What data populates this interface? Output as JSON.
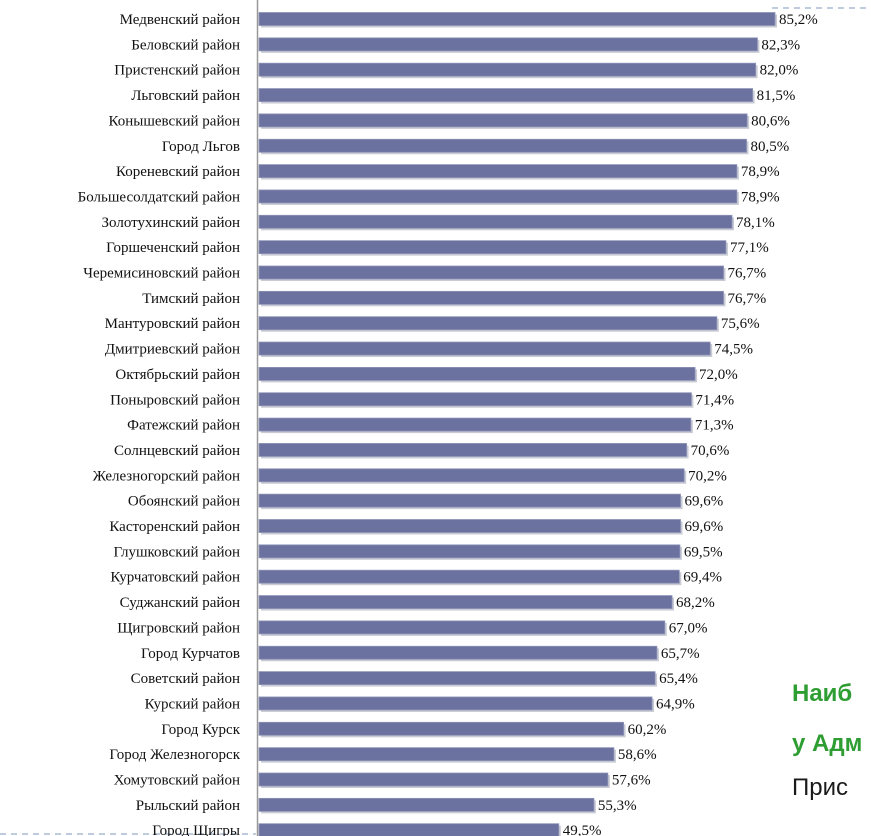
{
  "chart_data": {
    "type": "bar",
    "orientation": "horizontal",
    "categories": [
      "Медвенский район",
      "Беловский  район",
      "Пристенский район",
      "Льговский район",
      "Конышевский район",
      "Город Льгов",
      "Кореневский район",
      "Большесолдатский район",
      "Золотухинский район",
      "Горшеченский район",
      "Черемисиновский район",
      "Тимский район",
      "Мантуровский район",
      "Дмитриевский район",
      "Октябрьский район",
      "Поныровский район",
      "Фатежский район",
      "Солнцевский район",
      "Железногорский район",
      "Обоянский район",
      "Касторенский район",
      "Глушковский район",
      "Курчатовский район",
      "Суджанский район",
      "Щигровский район",
      "Город Курчатов",
      "Советский район",
      "Курский район",
      "Город Курск",
      "Город Железногорск",
      "Хомутовский район",
      "Рыльский район",
      "Город Щигры"
    ],
    "values": [
      85.2,
      82.3,
      82.0,
      81.5,
      80.6,
      80.5,
      78.9,
      78.9,
      78.1,
      77.1,
      76.7,
      76.7,
      75.6,
      74.5,
      72.0,
      71.4,
      71.3,
      70.6,
      70.2,
      69.6,
      69.6,
      69.5,
      69.4,
      68.2,
      67.0,
      65.7,
      65.4,
      64.9,
      60.2,
      58.6,
      57.6,
      55.3,
      49.5
    ],
    "value_labels": [
      "85,2%",
      "82,3%",
      "82,0%",
      "81,5%",
      "80,6%",
      "80,5%",
      "78,9%",
      "78,9%",
      "78,1%",
      "77,1%",
      "76,7%",
      "76,7%",
      "75,6%",
      "74,5%",
      "72,0%",
      "71,4%",
      "71,3%",
      "70,6%",
      "70,2%",
      "69,6%",
      "69,6%",
      "69,5%",
      "69,4%",
      "68,2%",
      "67,0%",
      "65,7%",
      "65,4%",
      "64,9%",
      "60,2%",
      "58,6%",
      "57,6%",
      "55,3%",
      "49,5%"
    ],
    "xlim": [
      0,
      85.2
    ],
    "bar_color": "#6b72a0",
    "grid": false
  },
  "side_text": {
    "line1": "Наиб",
    "line2": "у Адм",
    "line3": "Прис"
  },
  "colors": {
    "highlight_text": "#2e9e33",
    "frame_dash": "#a8bcd4"
  }
}
